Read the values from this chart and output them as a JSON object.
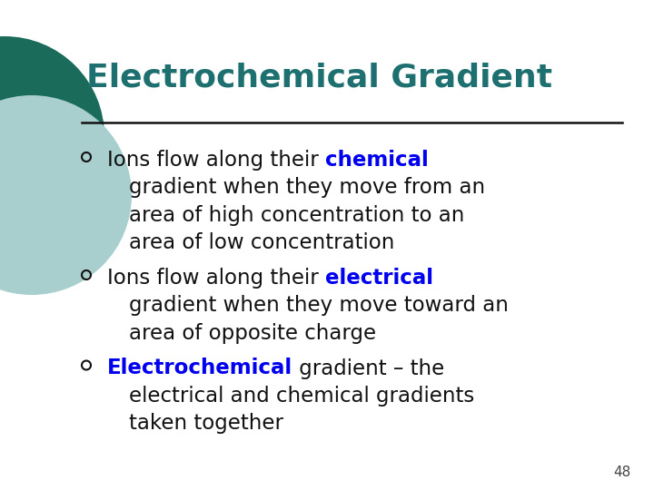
{
  "title": "Electrochemical Gradient",
  "title_color": "#1E7070",
  "title_fontsize": 26,
  "title_fontweight": "bold",
  "background_color": "#FFFFFF",
  "line_color": "#111111",
  "body_color": "#111111",
  "highlight_color": "#0000EE",
  "body_fontsize": 16.5,
  "body_font": "DejaVu Sans",
  "slide_number": "48",
  "circle_outer_color": "#1A6B5A",
  "circle_inner_color": "#A8CECE",
  "bullet1_pre": "Ions flow along their ",
  "bullet1_bold": "chemical",
  "bullet1_lines": [
    "gradient when they move from an",
    "area of high concentration to an",
    "area of low concentration"
  ],
  "bullet2_pre": "Ions flow along their ",
  "bullet2_bold": "electrical",
  "bullet2_lines": [
    "gradient when they move toward an",
    "area of opposite charge"
  ],
  "bullet3_bold": "Electrochemical",
  "bullet3_post": " gradient – the",
  "bullet3_lines": [
    "electrical and chemical gradients",
    "taken together"
  ]
}
